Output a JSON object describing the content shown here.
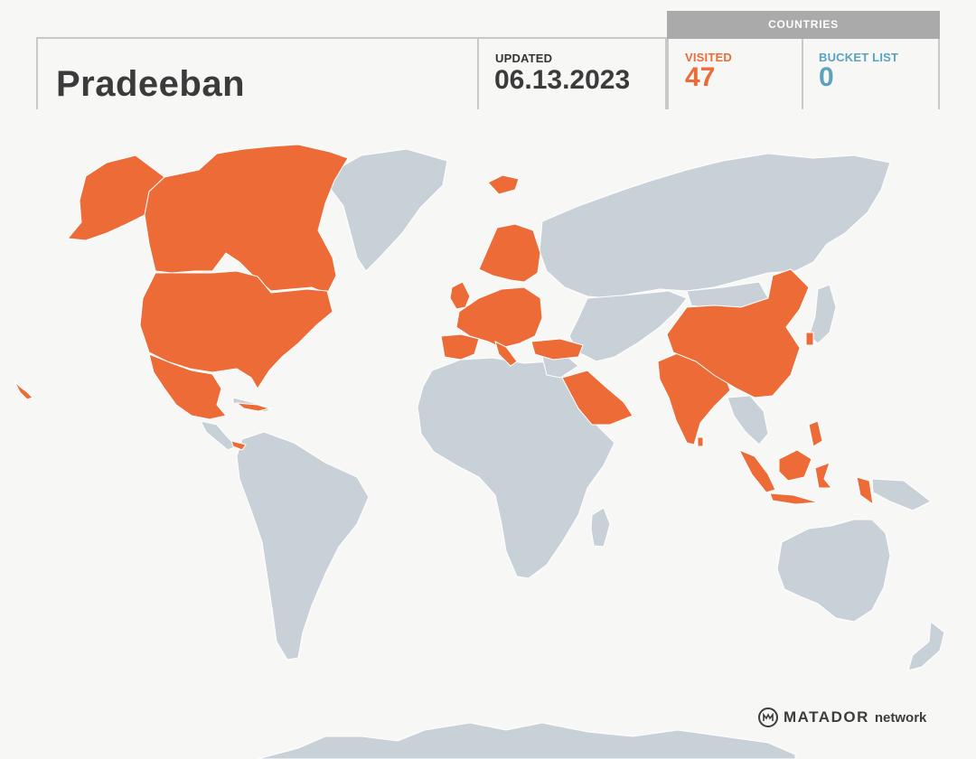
{
  "profile": {
    "name": "Pradeeban"
  },
  "updated": {
    "label": "UPDATED",
    "date": "06.13.2023"
  },
  "countries": {
    "header": "COUNTRIES",
    "visited": {
      "label": "VISITED",
      "count": "47"
    },
    "bucket_list": {
      "label": "BUCKET LIST",
      "count": "0"
    }
  },
  "map": {
    "visited_color": "#ec6b37",
    "unvisited_color": "#c9d1d8",
    "visited_regions": [
      "Canada",
      "United States",
      "Alaska",
      "Mexico",
      "Cuba",
      "Costa Rica",
      "Panama",
      "Iceland",
      "Norway",
      "Sweden",
      "Finland",
      "United Kingdom",
      "Ireland",
      "France",
      "Spain",
      "Portugal",
      "Germany",
      "Italy",
      "Greece",
      "Turkey",
      "Saudi Arabia",
      "Qatar",
      "UAE",
      "India",
      "Sri Lanka",
      "Nepal",
      "China",
      "Vietnam",
      "Malaysia",
      "Singapore",
      "Indonesia",
      "Philippines",
      "Taiwan",
      "Hawaii"
    ]
  },
  "brand": {
    "name": "MATADOR",
    "suffix": "network"
  }
}
